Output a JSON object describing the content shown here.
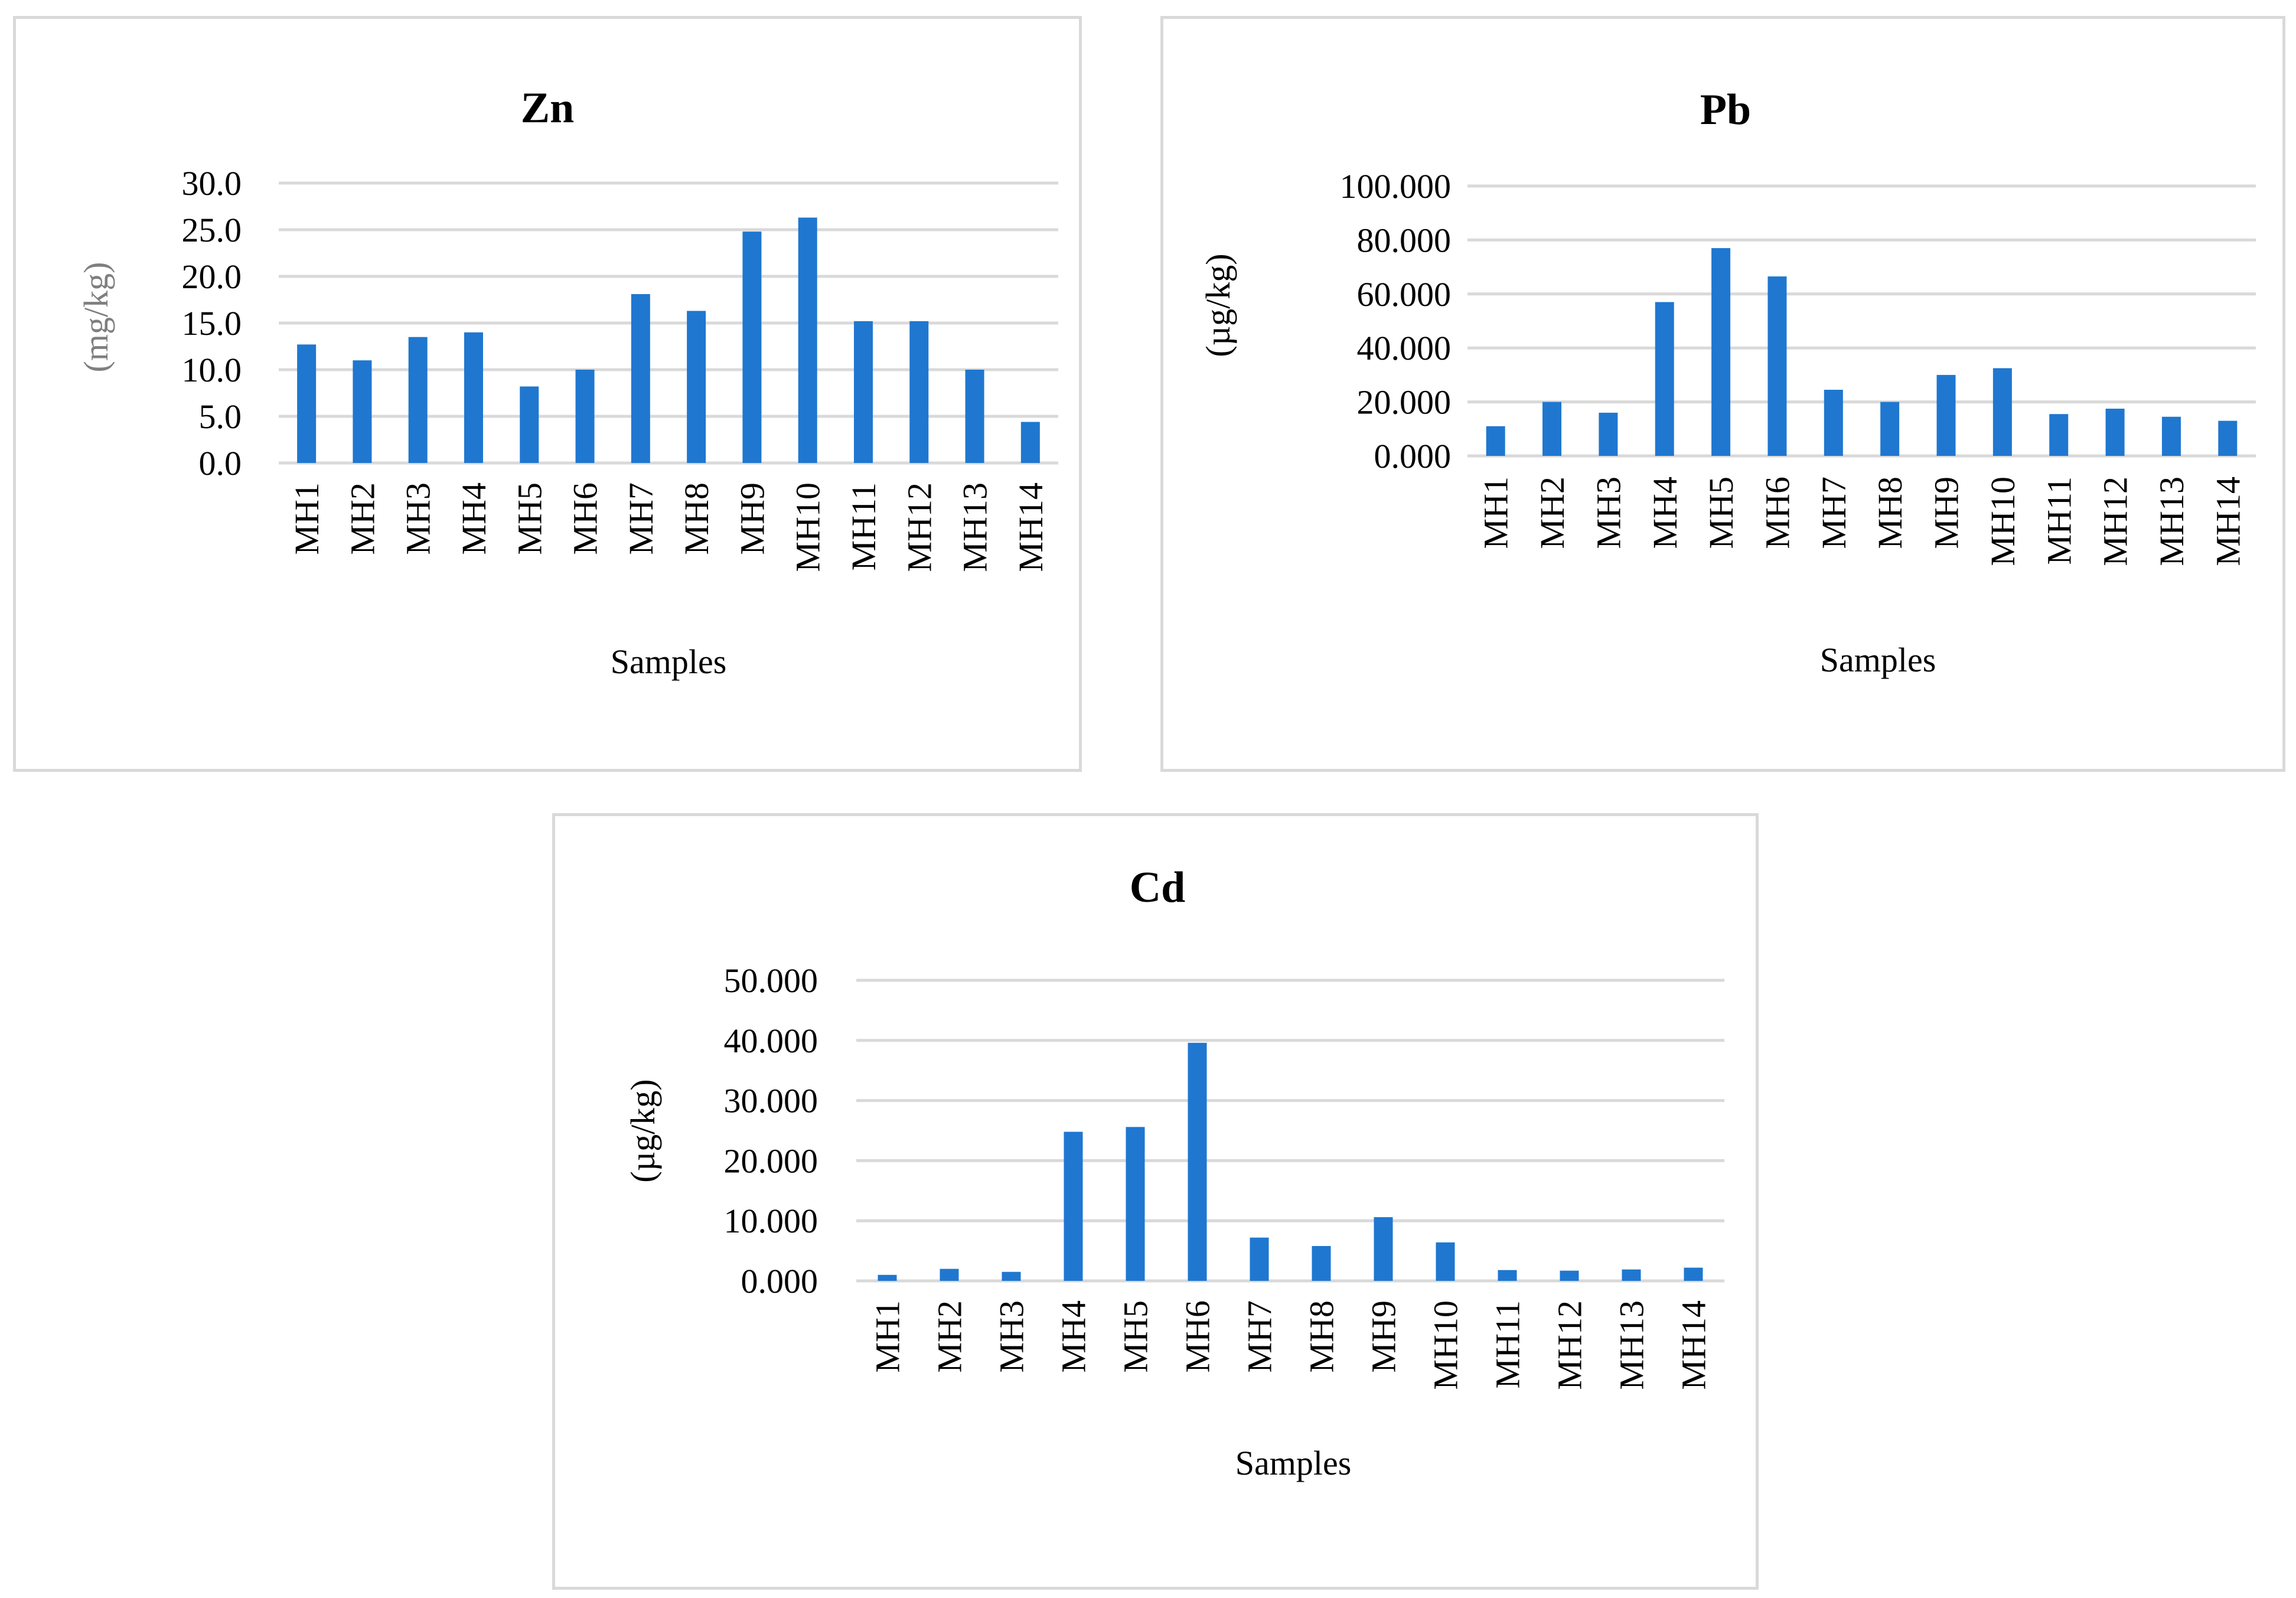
{
  "chart_data": [
    {
      "id": "zn",
      "type": "bar",
      "title": "Zn",
      "xlabel": "Samples",
      "ylabel": "(mg/kg)",
      "categories": [
        "MH1",
        "MH2",
        "MH3",
        "MH4",
        "MH5",
        "MH6",
        "MH7",
        "MH8",
        "MH9",
        "MH10",
        "MH11",
        "MH12",
        "MH13",
        "MH14"
      ],
      "values": [
        12.7,
        11.0,
        13.5,
        14.0,
        8.2,
        10.0,
        18.1,
        16.3,
        24.8,
        26.3,
        15.2,
        15.2,
        10.0,
        4.4
      ],
      "yticks": [
        "0.0",
        "5.0",
        "10.0",
        "15.0",
        "20.0",
        "25.0",
        "30.0"
      ],
      "ylim": [
        0,
        30
      ],
      "grid": true,
      "color": "#1f77d0"
    },
    {
      "id": "pb",
      "type": "bar",
      "title": "Pb",
      "xlabel": "Samples",
      "ylabel": "(µg/kg)",
      "categories": [
        "MH1",
        "MH2",
        "MH3",
        "MH4",
        "MH5",
        "MH6",
        "MH7",
        "MH8",
        "MH9",
        "MH10",
        "MH11",
        "MH12",
        "MH13",
        "MH14"
      ],
      "values": [
        11.0,
        20.0,
        16.0,
        57.0,
        77.0,
        66.5,
        24.5,
        20.0,
        30.0,
        32.5,
        15.5,
        17.5,
        14.5,
        13.0
      ],
      "yticks": [
        "0.000",
        "20.000",
        "40.000",
        "60.000",
        "80.000",
        "100.000"
      ],
      "ylim": [
        0,
        100
      ],
      "grid": true,
      "color": "#1f77d0"
    },
    {
      "id": "cd",
      "type": "bar",
      "title": "Cd",
      "xlabel": "Samples",
      "ylabel": "(µg/kg)",
      "categories": [
        "MH1",
        "MH2",
        "MH3",
        "MH4",
        "MH5",
        "MH6",
        "MH7",
        "MH8",
        "MH9",
        "MH10",
        "MH11",
        "MH12",
        "MH13",
        "MH14"
      ],
      "values": [
        1.0,
        2.0,
        1.5,
        24.8,
        25.6,
        39.6,
        7.2,
        5.8,
        10.6,
        6.4,
        1.8,
        1.7,
        1.9,
        2.2
      ],
      "yticks": [
        "0.000",
        "10.000",
        "20.000",
        "30.000",
        "40.000",
        "50.000"
      ],
      "ylim": [
        0,
        50
      ],
      "grid": true,
      "color": "#1f77d0"
    }
  ]
}
